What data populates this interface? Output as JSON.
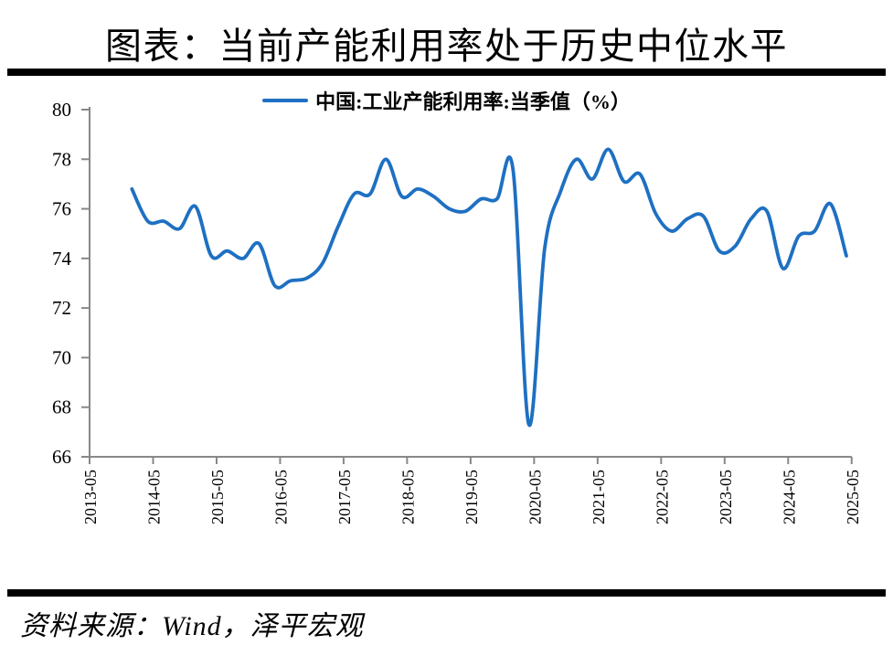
{
  "title": "图表：当前产能利用率处于历史中位水平",
  "legend": {
    "label": "中国:工业产能利用率:当季值（%）"
  },
  "source": "资料来源：Wind，泽平宏观",
  "colors": {
    "line": "#1E70C2",
    "axis": "#888888",
    "rule": "#000000"
  },
  "chart_data": {
    "type": "line",
    "title": "图表：当前产能利用率处于历史中位水平",
    "series_name": "中国:工业产能利用率:当季值（%）",
    "grid": false,
    "legend_position": "top-center",
    "ylim": [
      66,
      80
    ],
    "y_ticks": [
      80,
      78,
      76,
      74,
      72,
      70,
      68,
      66
    ],
    "x_tick_labels": [
      "2013-05",
      "2014-05",
      "2015-05",
      "2016-05",
      "2017-05",
      "2018-05",
      "2019-05",
      "2020-05",
      "2021-05",
      "2022-05",
      "2023-05",
      "2024-05",
      "2025-05"
    ],
    "x": [
      "2013-12",
      "2014-03",
      "2014-06",
      "2014-09",
      "2014-12",
      "2015-03",
      "2015-06",
      "2015-09",
      "2015-12",
      "2016-03",
      "2016-06",
      "2016-09",
      "2016-12",
      "2017-03",
      "2017-06",
      "2017-09",
      "2017-12",
      "2018-03",
      "2018-06",
      "2018-09",
      "2018-12",
      "2019-03",
      "2019-06",
      "2019-09",
      "2019-12",
      "2020-03",
      "2020-06",
      "2020-09",
      "2020-12",
      "2021-03",
      "2021-06",
      "2021-09",
      "2021-12",
      "2022-03",
      "2022-06",
      "2022-09",
      "2022-12",
      "2023-03",
      "2023-06",
      "2023-09",
      "2023-12",
      "2024-03",
      "2024-06",
      "2024-09",
      "2024-12",
      "2025-03"
    ],
    "values": [
      76.8,
      75.5,
      75.5,
      75.2,
      76.1,
      74.1,
      74.3,
      74.0,
      74.6,
      72.9,
      73.1,
      73.2,
      73.8,
      75.3,
      76.6,
      76.6,
      78.0,
      76.5,
      76.8,
      76.5,
      76.0,
      75.9,
      76.4,
      76.4,
      77.6,
      67.3,
      74.4,
      76.7,
      78.0,
      77.2,
      78.4,
      77.1,
      77.4,
      75.8,
      75.1,
      75.6,
      75.7,
      74.3,
      74.5,
      75.6,
      75.9,
      73.6,
      74.9,
      75.1,
      76.2,
      74.1
    ],
    "line_color": "#1E70C2",
    "axis_color": "#888888"
  }
}
